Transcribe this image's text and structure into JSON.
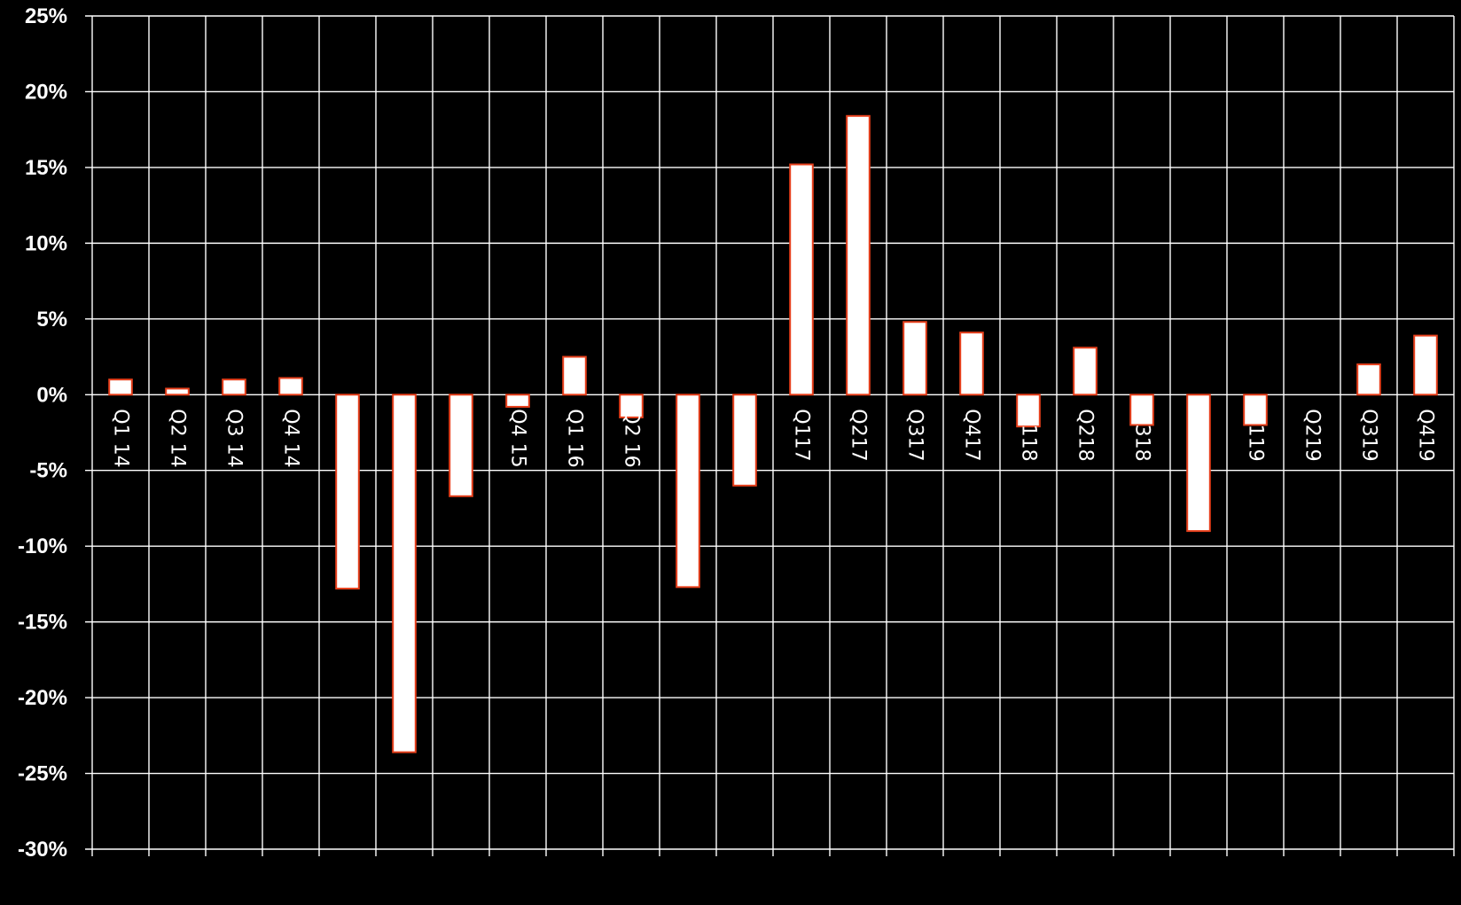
{
  "chart_data": {
    "type": "bar",
    "title": "",
    "xlabel": "",
    "ylabel": "",
    "ylim": [
      -30,
      25
    ],
    "ytick_step": 5,
    "ytick_labels": [
      "25%",
      "20%",
      "15%",
      "10%",
      "5%",
      "0%",
      "-5%",
      "-10%",
      "-15%",
      "-20%",
      "-25%",
      "-30%"
    ],
    "categories": [
      "Q1 14",
      "Q2 14",
      "Q3 14",
      "Q4 14",
      "",
      "",
      "",
      "Q4 15",
      "Q1 16",
      "Q2 16",
      "",
      "",
      "Q117",
      "Q217",
      "Q317",
      "Q417",
      "Q118",
      "Q218",
      "Q318",
      "",
      "Q119",
      "Q219",
      "Q319",
      "Q419"
    ],
    "values": [
      1.0,
      0.4,
      1.0,
      1.1,
      -12.8,
      -23.6,
      -6.7,
      -0.8,
      2.5,
      -1.5,
      -12.7,
      -6.0,
      15.2,
      18.4,
      4.8,
      4.1,
      -2.1,
      3.1,
      -2.0,
      -9.0,
      -2.0,
      0.0,
      2.0,
      3.9
    ],
    "grid": true,
    "legend": "none",
    "colors": {
      "background": "#000000",
      "grid": "#ffffff",
      "bar_fill": "#ffffff",
      "bar_stroke": "#e8401c",
      "text": "#ffffff"
    }
  }
}
